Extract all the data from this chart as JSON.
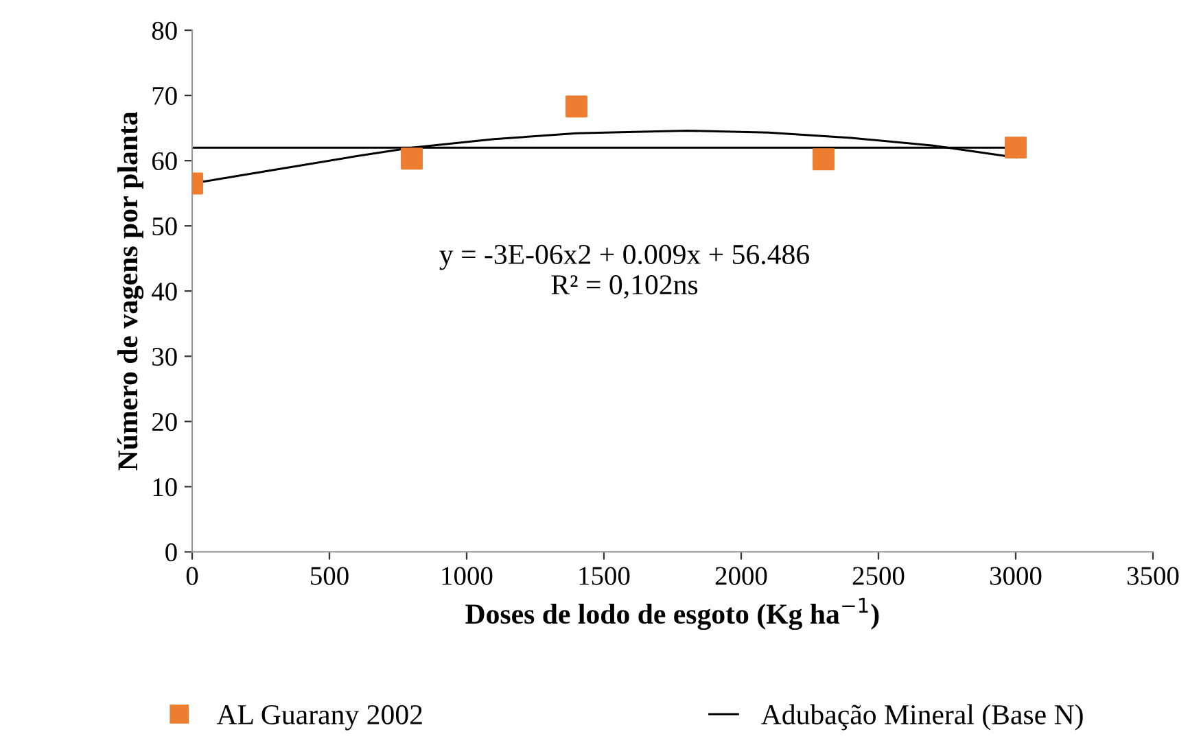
{
  "chart_data": {
    "type": "scatter",
    "xlabel": "Doses de lodo de esgoto (Kg ha$^{−1}$)",
    "ylabel": "Número de vagens por planta",
    "xlim": [
      0,
      3500
    ],
    "xticks": [
      0,
      500,
      1000,
      1500,
      2000,
      2500,
      3000,
      3500
    ],
    "ylim": [
      0,
      80
    ],
    "yticks": [
      0,
      10,
      20,
      30,
      40,
      50,
      60,
      70,
      80
    ],
    "grid": false,
    "legend": "bottom",
    "series": [
      {
        "name": "AL Guarany 2002",
        "marker": "square",
        "color": "#ed7d31",
        "x": [
          0,
          800,
          1400,
          2300,
          3000
        ],
        "values": [
          56.5,
          60.3,
          68.3,
          60.2,
          62
        ]
      },
      {
        "name": "Adubação Mineral (Base N)",
        "type": "line",
        "marker": "none",
        "color": "#000000",
        "x": [
          0,
          3000
        ],
        "values": [
          62,
          62
        ]
      },
      {
        "type": "line",
        "marker": "none",
        "color": "#000000",
        "x": [
          0,
          300,
          600,
          800,
          1100,
          1400,
          1800,
          2100,
          2400,
          2700,
          3000
        ],
        "values": [
          56.5,
          58.6,
          60.7,
          62,
          63.3,
          64.2,
          64.6,
          64.3,
          63.5,
          62.3,
          60.5
        ]
      }
    ],
    "annotations": [
      "y = -3E-06x2 + 0.009x + 56.486",
      "R² = 0,102ns"
    ]
  }
}
